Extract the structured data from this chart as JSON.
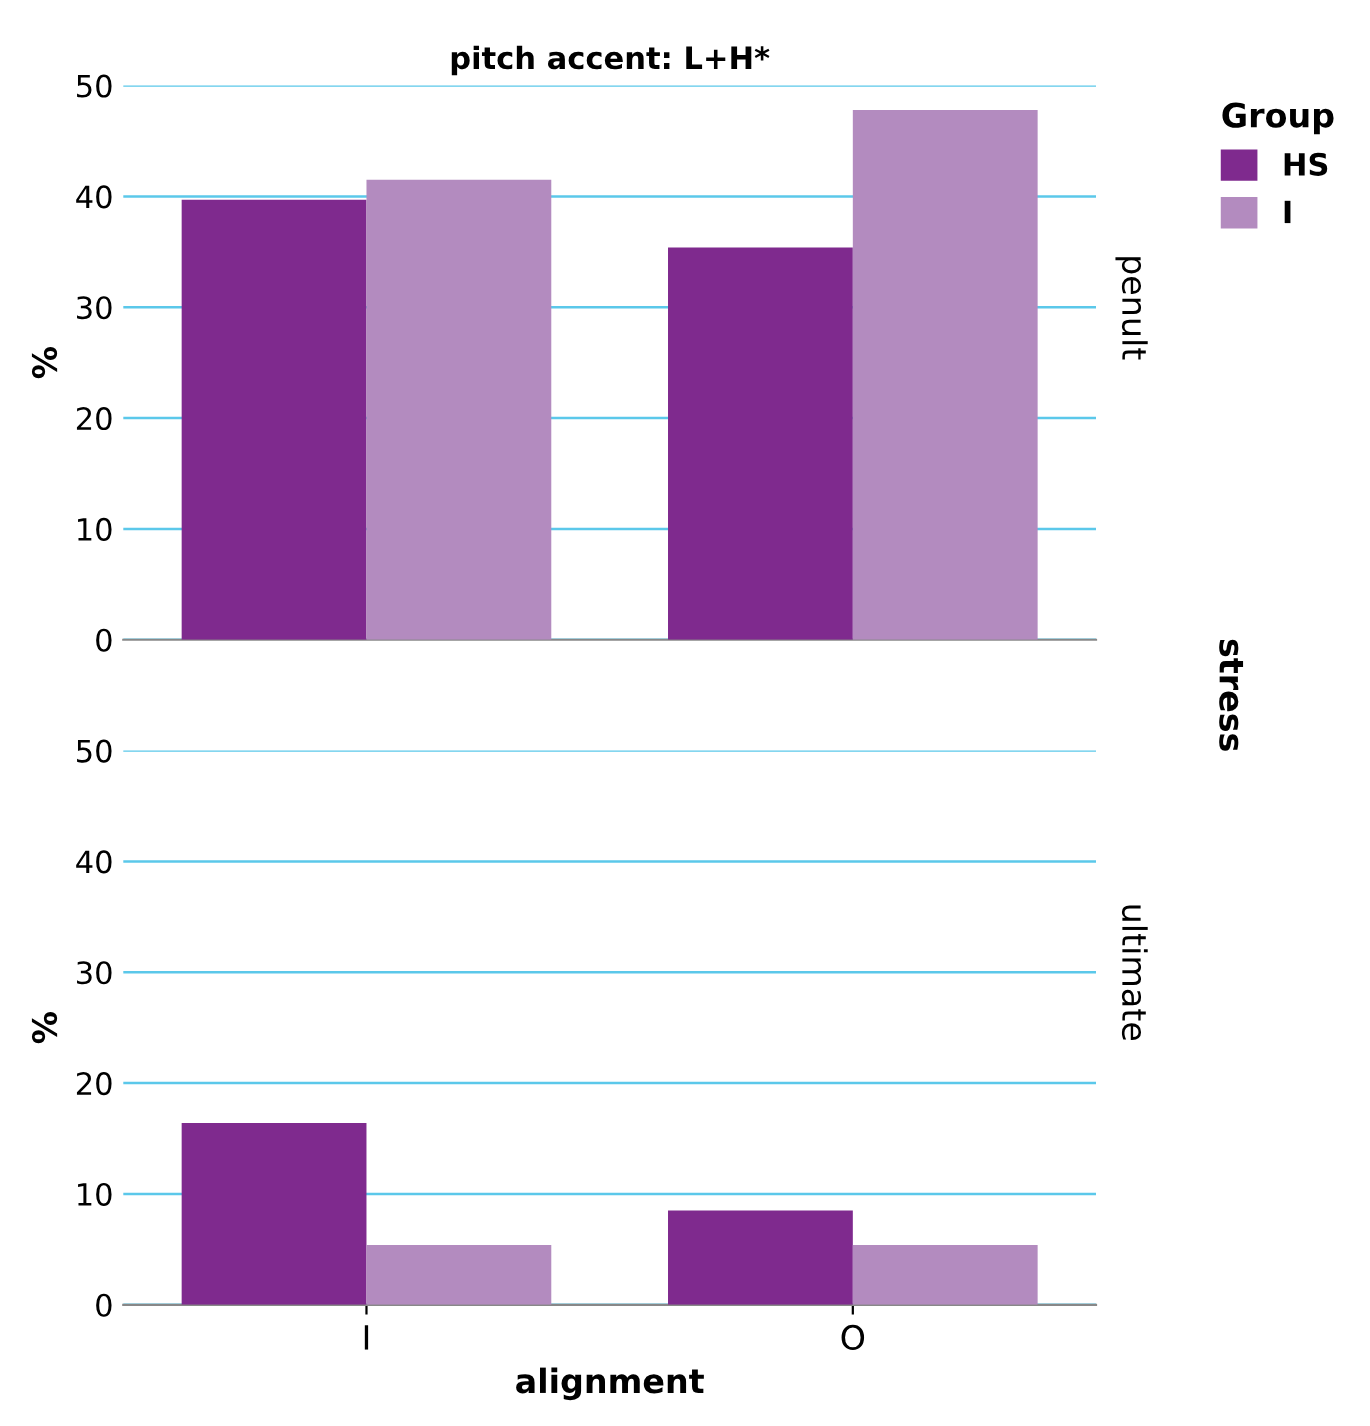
{
  "chart_data": [
    {
      "type": "bar",
      "title": "pitch accent: L+H*",
      "ylabel": "%",
      "y2label": "penult",
      "legend_title": "Group",
      "annotations": [
        "stress"
      ],
      "categories": [
        null,
        null
      ],
      "series": [
        {
          "name": "HS",
          "color": "#7f2a8e",
          "values": [
            39.7,
            35.4
          ]
        },
        {
          "name": "I",
          "color": "#b38bbf",
          "values": [
            41.5,
            47.8
          ]
        }
      ],
      "ylim": [
        0,
        50
      ],
      "yticks": [
        0,
        10,
        20,
        30,
        40,
        50
      ],
      "grid": "y",
      "legend": "top right",
      "tick_labels": "y"
    },
    {
      "type": "bar",
      "ylabel": "%",
      "xlabel": "alignment",
      "y2label": "ultimate",
      "categories": [
        "I",
        "O"
      ],
      "series": [
        {
          "color": "#7f2a8e",
          "values": [
            16.4,
            8.5
          ]
        },
        {
          "color": "#b38bbf",
          "values": [
            5.4,
            5.4
          ]
        }
      ],
      "ylim": [
        0,
        50
      ],
      "yticks": [
        0,
        10,
        20,
        30,
        40,
        50
      ],
      "grid": "y"
    }
  ]
}
